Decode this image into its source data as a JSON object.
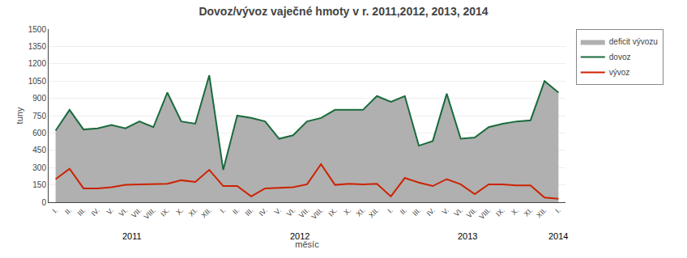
{
  "chart_data": {
    "type": "line",
    "title": "Dovoz/vývoz vaječné hmoty v r. 2011,2012, 2013, 2014",
    "xlabel": "měsíc",
    "ylabel": "tuny",
    "categories": [
      "I.",
      "II.",
      "III.",
      "IV.",
      "V.",
      "VI.",
      "VII.",
      "VIII.",
      "IX.",
      "X.",
      "XI.",
      "XII.",
      "I.",
      "II.",
      "III.",
      "IV.",
      "V.",
      "VI.",
      "VII.",
      "VIII.",
      "IX.",
      "X.",
      "XI.",
      "XII.",
      "I.",
      "II.",
      "III.",
      "IV.",
      "V.",
      "VI.",
      "VII.",
      "VIII.",
      "IX.",
      "X.",
      "XI.",
      "XII.",
      "I."
    ],
    "series": [
      {
        "name": "deficit vývozu",
        "type": "area",
        "color": "#b0b0b0",
        "values": [
          620,
          800,
          630,
          640,
          670,
          640,
          700,
          650,
          950,
          700,
          680,
          1100,
          280,
          750,
          730,
          700,
          550,
          580,
          700,
          730,
          800,
          800,
          800,
          920,
          870,
          920,
          490,
          530,
          940,
          550,
          560,
          650,
          680,
          700,
          710,
          1050,
          950
        ]
      },
      {
        "name": "dovoz",
        "type": "line",
        "color": "#1a6b3c",
        "values": [
          620,
          800,
          630,
          640,
          670,
          640,
          700,
          650,
          950,
          700,
          680,
          1100,
          280,
          750,
          730,
          700,
          550,
          580,
          700,
          730,
          800,
          800,
          800,
          920,
          870,
          920,
          490,
          530,
          940,
          550,
          560,
          650,
          680,
          700,
          710,
          1050,
          950
        ]
      },
      {
        "name": "vývoz",
        "type": "line",
        "color": "#cc2200",
        "values": [
          200,
          290,
          120,
          120,
          130,
          150,
          155,
          160,
          160,
          190,
          175,
          280,
          140,
          140,
          50,
          120,
          125,
          130,
          155,
          330,
          150,
          160,
          155,
          160,
          50,
          210,
          170,
          140,
          200,
          155,
          70,
          155,
          155,
          145,
          145,
          40,
          30
        ]
      }
    ],
    "annotations": [
      {
        "text": "2011",
        "x": 5.5
      },
      {
        "text": "2012",
        "x": 17.5
      },
      {
        "text": "2013",
        "x": 29.5
      },
      {
        "text": "2014",
        "x": 36
      }
    ],
    "ylim": [
      0,
      1500
    ],
    "yticks": [
      0,
      150,
      300,
      450,
      600,
      750,
      900,
      1050,
      1200,
      1350,
      1500
    ],
    "grid": true,
    "legend": "upper right"
  }
}
